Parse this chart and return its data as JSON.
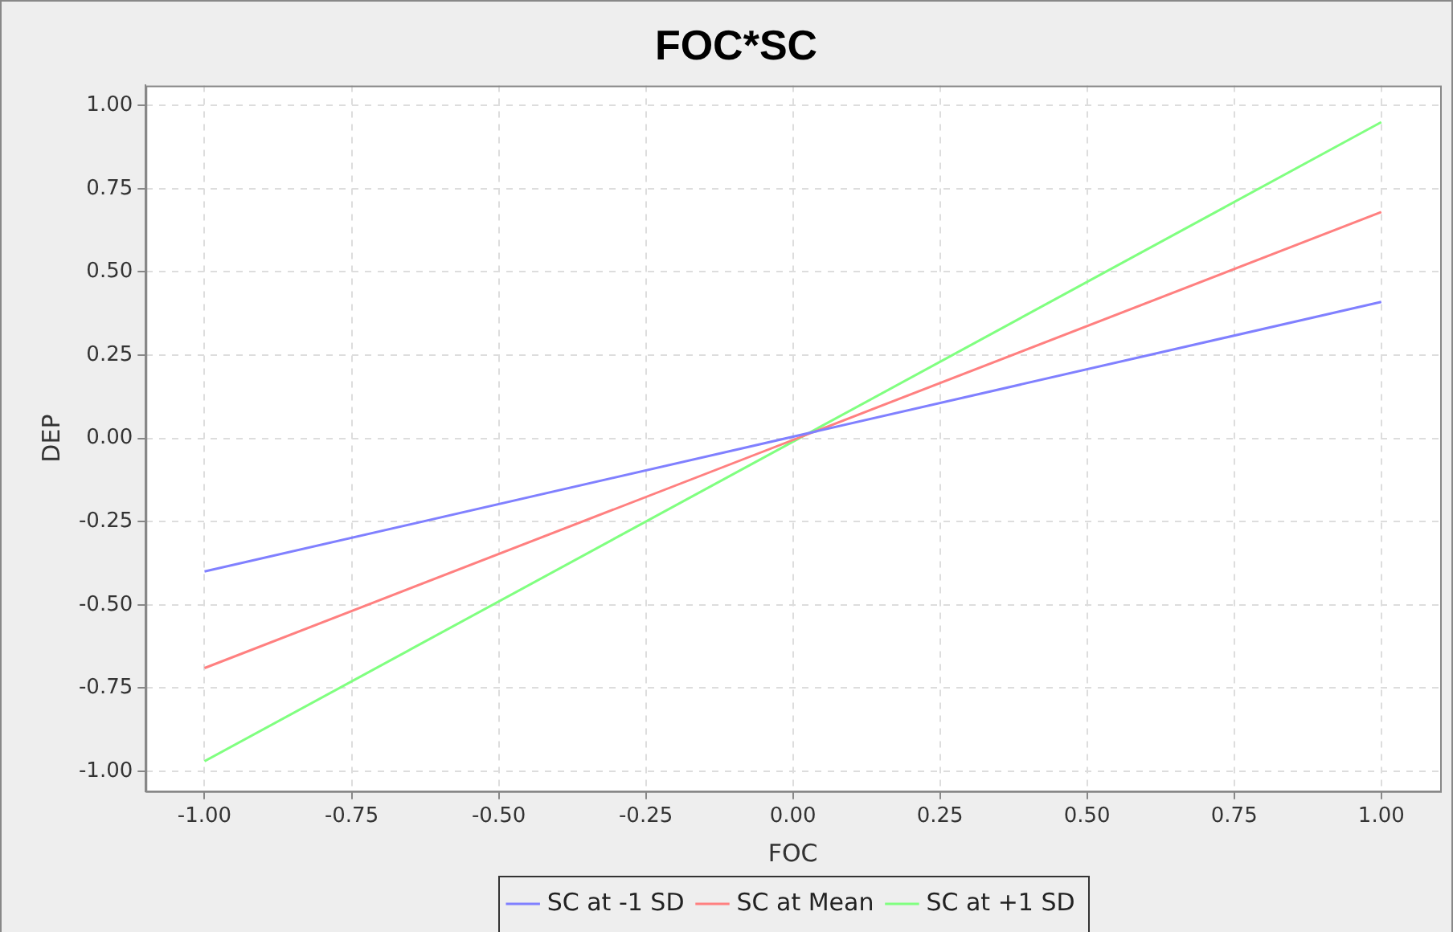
{
  "chart_data": {
    "type": "line",
    "title": "FOC*SC",
    "xlabel": "FOC",
    "ylabel": "DEP",
    "x": [
      -1,
      1
    ],
    "series": [
      {
        "name": "SC at -1 SD",
        "color": "#8080ff",
        "values": [
          -0.4,
          0.41
        ]
      },
      {
        "name": "SC at Mean",
        "color": "#ff8080",
        "values": [
          -0.69,
          0.68
        ]
      },
      {
        "name": "SC at +1 SD",
        "color": "#80ff80",
        "values": [
          -0.97,
          0.95
        ]
      }
    ],
    "xlim": [
      -1.1,
      1.1
    ],
    "xticks": [
      {
        "value": -1,
        "label": "-1.00"
      },
      {
        "value": -0.75,
        "label": "-0.75"
      },
      {
        "value": -0.5,
        "label": "-0.50"
      },
      {
        "value": -0.25,
        "label": "-0.25"
      },
      {
        "value": 0,
        "label": "0.00"
      },
      {
        "value": 0.25,
        "label": "0.25"
      },
      {
        "value": 0.5,
        "label": "0.50"
      },
      {
        "value": 0.75,
        "label": "0.75"
      },
      {
        "value": 1,
        "label": "1.00"
      }
    ],
    "ylim": [
      -1.06,
      1.06
    ],
    "yticks": [
      {
        "value": -1,
        "label": "-1.00"
      },
      {
        "value": -0.75,
        "label": "-0.75"
      },
      {
        "value": -0.5,
        "label": "-0.50"
      },
      {
        "value": -0.25,
        "label": "-0.25"
      },
      {
        "value": 0,
        "label": "0.00"
      },
      {
        "value": 0.25,
        "label": "0.25"
      },
      {
        "value": 0.5,
        "label": "0.50"
      },
      {
        "value": 0.75,
        "label": "0.75"
      },
      {
        "value": 1,
        "label": "1.00"
      }
    ],
    "grid": true,
    "legend": "bottom",
    "marker": "none",
    "line_style": "solid"
  }
}
